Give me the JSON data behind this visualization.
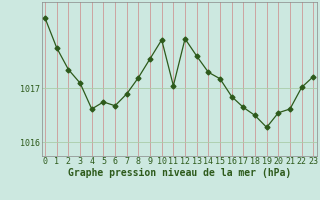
{
  "x": [
    0,
    1,
    2,
    3,
    4,
    5,
    6,
    7,
    8,
    9,
    10,
    11,
    12,
    13,
    14,
    15,
    16,
    17,
    18,
    19,
    20,
    21,
    22,
    23
  ],
  "y": [
    1018.3,
    1017.75,
    1017.35,
    1017.1,
    1016.62,
    1016.75,
    1016.68,
    1016.9,
    1017.2,
    1017.55,
    1017.9,
    1017.05,
    1017.92,
    1017.6,
    1017.3,
    1017.18,
    1016.85,
    1016.65,
    1016.5,
    1016.28,
    1016.55,
    1016.62,
    1017.02,
    1017.22
  ],
  "line_color": "#2d5a1b",
  "marker": "D",
  "marker_size": 2.5,
  "bg_color": "#cce8e0",
  "grid_color_v": "#cc8888",
  "grid_color_h": "#aaccaa",
  "xlabel": "Graphe pression niveau de la mer (hPa)",
  "xlabel_color": "#2d5a1b",
  "ytick_labels": [
    "1016",
    "1017"
  ],
  "ytick_values": [
    1016.0,
    1017.0
  ],
  "ylim": [
    1015.75,
    1018.6
  ],
  "xlim": [
    -0.3,
    23.3
  ],
  "xtick_labels": [
    "0",
    "1",
    "2",
    "3",
    "4",
    "5",
    "6",
    "7",
    "8",
    "9",
    "10",
    "11",
    "12",
    "13",
    "14",
    "15",
    "16",
    "17",
    "18",
    "19",
    "20",
    "21",
    "22",
    "23"
  ],
  "label_fontsize": 7.0,
  "tick_fontsize": 6.0
}
